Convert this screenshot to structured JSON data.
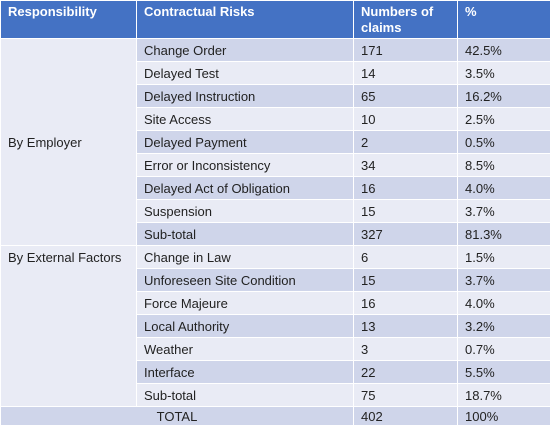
{
  "headers": [
    "Responsibility",
    "Contractual Risks",
    "Numbers of claims",
    "%"
  ],
  "groups": [
    {
      "name": "By Employer",
      "rows": [
        {
          "risk": "Change Order",
          "claims": "171",
          "pct": "42.5%"
        },
        {
          "risk": "Delayed Test",
          "claims": "14",
          "pct": "3.5%"
        },
        {
          "risk": "Delayed Instruction",
          "claims": "65",
          "pct": "16.2%"
        },
        {
          "risk": "Site Access",
          "claims": "10",
          "pct": "2.5%"
        },
        {
          "risk": "Delayed Payment",
          "claims": "2",
          "pct": "0.5%"
        },
        {
          "risk": "Error or Inconsistency",
          "claims": "34",
          "pct": "8.5%"
        },
        {
          "risk": "Delayed Act of Obligation",
          "claims": "16",
          "pct": "4.0%"
        },
        {
          "risk": "Suspension",
          "claims": "15",
          "pct": "3.7%"
        },
        {
          "risk": "Sub-total",
          "claims": "327",
          "pct": "81.3%"
        }
      ]
    },
    {
      "name": "By External Factors",
      "rows": [
        {
          "risk": "Change in Law",
          "claims": "6",
          "pct": "1.5%"
        },
        {
          "risk": "Unforeseen Site Condition",
          "claims": "15",
          "pct": "3.7%"
        },
        {
          "risk": "Force Majeure",
          "claims": "16",
          "pct": "4.0%"
        },
        {
          "risk": "Local Authority",
          "claims": "13",
          "pct": "3.2%"
        },
        {
          "risk": "Weather",
          "claims": "3",
          "pct": "0.7%"
        },
        {
          "risk": "Interface",
          "claims": "22",
          "pct": "5.5%"
        },
        {
          "risk": "Sub-total",
          "claims": "75",
          "pct": "18.7%"
        }
      ]
    }
  ],
  "total": {
    "label": "TOTAL",
    "claims": "402",
    "pct": "100%"
  },
  "colors": {
    "header": "#4472c4",
    "band_dark": "#cfd5ea",
    "band_light": "#e9ebf5"
  }
}
